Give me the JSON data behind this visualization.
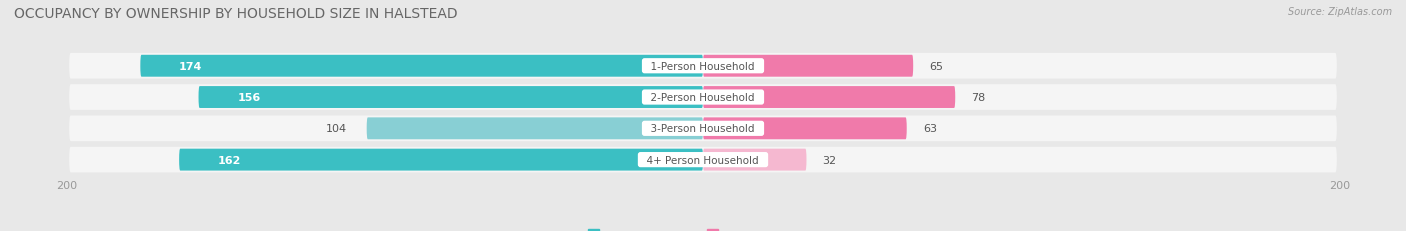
{
  "title": "OCCUPANCY BY OWNERSHIP BY HOUSEHOLD SIZE IN HALSTEAD",
  "source": "Source: ZipAtlas.com",
  "categories": [
    "1-Person Household",
    "2-Person Household",
    "3-Person Household",
    "4+ Person Household"
  ],
  "owner_values": [
    174,
    156,
    104,
    162
  ],
  "renter_values": [
    65,
    78,
    63,
    32
  ],
  "owner_colors_dark": [
    "#2fb5ba",
    "#2fb5ba",
    "#2fb5ba",
    "#2fb5ba"
  ],
  "owner_colors": [
    "#3bbfc3",
    "#3bbfc3",
    "#88cfd4",
    "#3bbfc3"
  ],
  "renter_colors": [
    "#f07aaa",
    "#f07aaa",
    "#f07aaa",
    "#f5b8d0"
  ],
  "axis_max": 200,
  "background_color": "#e8e8e8",
  "row_bg_color": "#f5f5f5",
  "legend_owner_color": "#3bbfc3",
  "legend_renter_color": "#f07aaa",
  "title_fontsize": 10,
  "bar_height": 0.7
}
